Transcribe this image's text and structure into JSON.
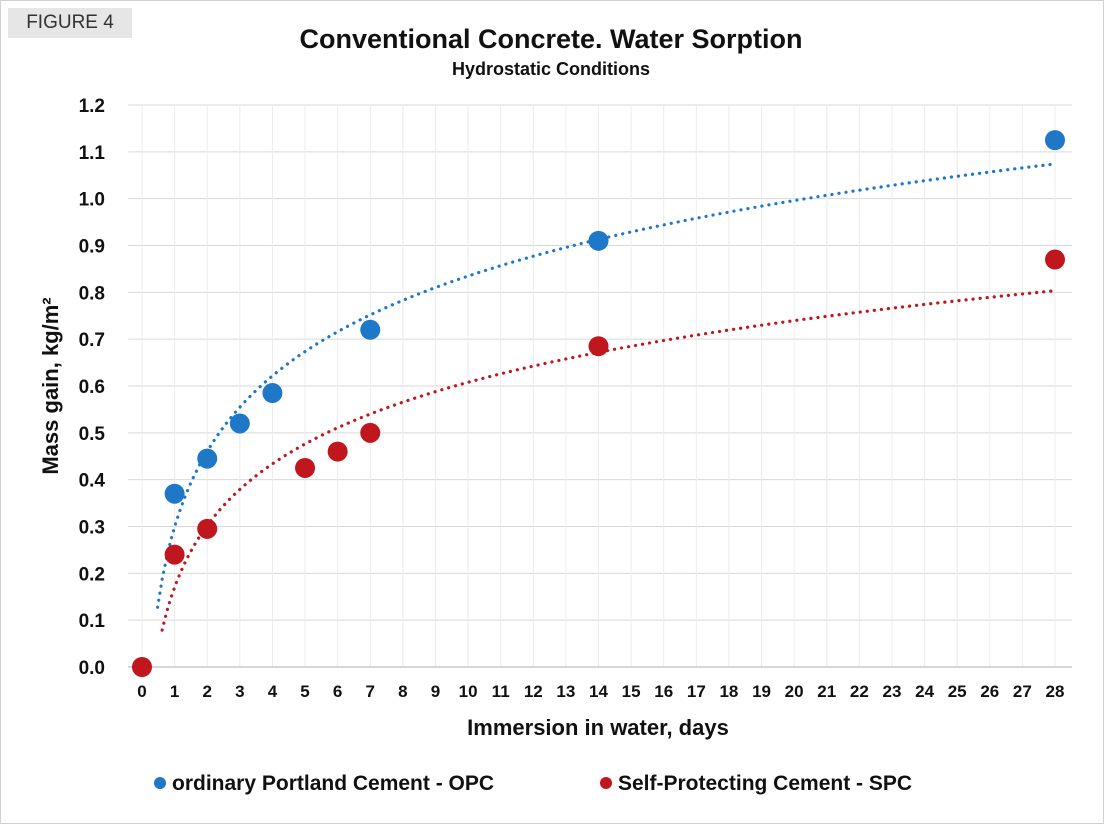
{
  "figure_label": "FIGURE 4",
  "chart_data": {
    "type": "scatter",
    "title": "Conventional Concrete. Water Sorption",
    "subtitle": "Hydrostatic Conditions",
    "xlabel": "Immersion in water, days",
    "ylabel": "Mass gain, kg/m²",
    "xlim": [
      0,
      28
    ],
    "ylim": [
      0,
      1.2
    ],
    "x_ticks": [
      "0",
      "1",
      "2",
      "3",
      "4",
      "5",
      "6",
      "7",
      "8",
      "9",
      "10",
      "11",
      "12",
      "13",
      "14",
      "15",
      "16",
      "17",
      "18",
      "19",
      "20",
      "21",
      "22",
      "23",
      "24",
      "25",
      "26",
      "27",
      "28"
    ],
    "y_ticks": [
      "0.0",
      "0.1",
      "0.2",
      "0.3",
      "0.4",
      "0.5",
      "0.6",
      "0.7",
      "0.8",
      "0.9",
      "1.0",
      "1.1",
      "1.2"
    ],
    "grid": true,
    "legend_position": "bottom",
    "series": [
      {
        "name": "ordinary Portland Cement - OPC",
        "color": "#1f77c8",
        "x": [
          1,
          2,
          3,
          4,
          7,
          14,
          28
        ],
        "y": [
          0.37,
          0.445,
          0.52,
          0.585,
          0.72,
          0.91,
          1.125
        ],
        "trendline": "logarithmic, dotted"
      },
      {
        "name": "Self-Protecting Cement - SPC",
        "color": "#c0161d",
        "x": [
          0,
          1,
          2,
          5,
          6,
          7,
          14,
          28
        ],
        "y": [
          0.0,
          0.24,
          0.295,
          0.425,
          0.46,
          0.5,
          0.685,
          0.87
        ],
        "trendline": "logarithmic, dotted"
      }
    ]
  }
}
